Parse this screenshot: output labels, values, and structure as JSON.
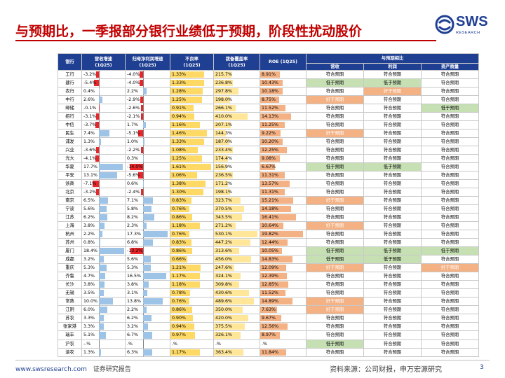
{
  "title": "与预期比，一季报部分银行业绩低于预期，阶段性扰动股价",
  "logo": {
    "name": "SWS",
    "subtitle": "RESEARCH",
    "color": "#1f3f93"
  },
  "headers": {
    "bank": "银行",
    "rev": "营收增速",
    "rev_sub": "(1Q25)",
    "np": "归母净利润增速",
    "np_sub": "(1Q25)",
    "npl": "不良率",
    "npl_sub": "(1Q25)",
    "cov": "拨备覆盖率",
    "cov_sub": "(1Q25)",
    "roe": "ROE (1Q25)",
    "exp": "与预期相比",
    "exp_rev": "营收",
    "exp_np": "利润",
    "exp_aq": "资产质量"
  },
  "colors": {
    "header": "#1f3f93",
    "title": "#c00000",
    "neg_bar": "#e8262a",
    "pos_bar": "#9dc3e6",
    "npl_bar": "#ffd966",
    "roe_bar": "#f4b183",
    "low": "#c6e0b4",
    "high": "#f4b183"
  },
  "rows": [
    {
      "bank": "工行",
      "rev": "-3.2%",
      "np": "-4.0%",
      "npl": "1.33%",
      "cov": "215.7%",
      "roe": "8.91%",
      "e1": "符合预期",
      "e2": "符合预期",
      "e3": "符合预期",
      "rv": -3.2,
      "nv": -4.0,
      "lv": 1.33,
      "cv": 215.7,
      "ov": 8.91
    },
    {
      "bank": "建行",
      "rev": "-5.4%",
      "np": "-4.0%",
      "npl": "1.33%",
      "cov": "236.8%",
      "roe": "10.43%",
      "e1": "低于预期",
      "e2": "低于预期",
      "e3": "符合预期",
      "rv": -5.4,
      "nv": -4.0,
      "lv": 1.33,
      "cv": 236.8,
      "ov": 10.43
    },
    {
      "bank": "农行",
      "rev": "0.4%",
      "np": "2.2%",
      "npl": "1.28%",
      "cov": "297.8%",
      "roe": "10.18%",
      "e1": "符合预期",
      "e2": "好于预期",
      "e3": "符合预期",
      "rv": 0.4,
      "nv": 2.2,
      "lv": 1.28,
      "cv": 297.8,
      "ov": 10.18
    },
    {
      "bank": "中行",
      "rev": "2.6%",
      "np": "-2.9%",
      "npl": "1.25%",
      "cov": "198.0%",
      "roe": "8.75%",
      "e1": "好于预期",
      "e2": "符合预期",
      "e3": "符合预期",
      "rv": 2.6,
      "nv": -2.9,
      "lv": 1.25,
      "cv": 198.0,
      "ov": 8.75
    },
    {
      "bank": "邮储",
      "rev": "-0.1%",
      "np": "-2.6%",
      "npl": "0.91%",
      "cov": "266.1%",
      "roe": "11.52%",
      "e1": "符合预期",
      "e2": "符合预期",
      "e3": "低于预期",
      "rv": -0.1,
      "nv": -2.6,
      "lv": 0.91,
      "cv": 266.1,
      "ov": 11.52
    },
    {
      "bank": "招行",
      "rev": "-3.1%",
      "np": "-2.1%",
      "npl": "0.94%",
      "cov": "410.0%",
      "roe": "14.13%",
      "e1": "符合预期",
      "e2": "符合预期",
      "e3": "符合预期",
      "rv": -3.1,
      "nv": -2.1,
      "lv": 0.94,
      "cv": 410.0,
      "ov": 14.13
    },
    {
      "bank": "中信",
      "rev": "-3.7%",
      "np": "1.7%",
      "npl": "1.16%",
      "cov": "207.1%",
      "roe": "11.25%",
      "e1": "符合预期",
      "e2": "符合预期",
      "e3": "符合预期",
      "rv": -3.7,
      "nv": 1.7,
      "lv": 1.16,
      "cv": 207.1,
      "ov": 11.25
    },
    {
      "bank": "民生",
      "rev": "7.4%",
      "np": "-5.1%",
      "npl": "1.46%",
      "cov": "144.3%",
      "roe": "9.22%",
      "e1": "好于预期",
      "e2": "符合预期",
      "e3": "符合预期",
      "rv": 7.4,
      "nv": -5.1,
      "lv": 1.46,
      "cv": 144.3,
      "ov": 9.22
    },
    {
      "bank": "浦发",
      "rev": "1.3%",
      "np": "1.0%",
      "npl": "1.33%",
      "cov": "187.0%",
      "roe": "10.20%",
      "e1": "符合预期",
      "e2": "符合预期",
      "e3": "符合预期",
      "rv": 1.3,
      "nv": 1.0,
      "lv": 1.33,
      "cv": 187.0,
      "ov": 10.2
    },
    {
      "bank": "兴业",
      "rev": "-3.6%",
      "np": "-2.2%",
      "npl": "1.08%",
      "cov": "233.4%",
      "roe": "12.25%",
      "e1": "符合预期",
      "e2": "符合预期",
      "e3": "符合预期",
      "rv": -3.6,
      "nv": -2.2,
      "lv": 1.08,
      "cv": 233.4,
      "ov": 12.25
    },
    {
      "bank": "光大",
      "rev": "-4.1%",
      "np": "0.3%",
      "npl": "1.25%",
      "cov": "174.4%",
      "roe": "9.08%",
      "e1": "符合预期",
      "e2": "符合预期",
      "e3": "符合预期",
      "rv": -4.1,
      "nv": 0.3,
      "lv": 1.25,
      "cv": 174.4,
      "ov": 9.08
    },
    {
      "bank": "华夏",
      "rev": "17.7%",
      "np": "-14.0%",
      "npl": "1.61%",
      "cov": "156.9%",
      "roe": "6.67%",
      "e1": "低于预期",
      "e2": "低于预期",
      "e3": "符合预期",
      "rv": 17.7,
      "nv": -14.0,
      "lv": 1.61,
      "cv": 156.9,
      "ov": 6.67
    },
    {
      "bank": "平安",
      "rev": "13.1%",
      "np": "-5.6%",
      "npl": "1.06%",
      "cov": "236.5%",
      "roe": "11.31%",
      "e1": "符合预期",
      "e2": "符合预期",
      "e3": "符合预期",
      "rv": 13.1,
      "nv": -5.6,
      "lv": 1.06,
      "cv": 236.5,
      "ov": 11.31
    },
    {
      "bank": "浙商",
      "rev": "-7.1%",
      "np": "0.6%",
      "npl": "1.38%",
      "cov": "171.2%",
      "roe": "13.57%",
      "e1": "符合预期",
      "e2": "符合预期",
      "e3": "符合预期",
      "rv": -7.1,
      "nv": 0.6,
      "lv": 1.38,
      "cv": 171.2,
      "ov": 13.57
    },
    {
      "bank": "北京",
      "rev": "-3.2%",
      "np": "-2.4%",
      "npl": "1.30%",
      "cov": "198.1%",
      "roe": "11.31%",
      "e1": "符合预期",
      "e2": "符合预期",
      "e3": "符合预期",
      "rv": -3.2,
      "nv": -2.4,
      "lv": 1.3,
      "cv": 198.1,
      "ov": 11.31
    },
    {
      "bank": "南京",
      "rev": "6.5%",
      "np": "7.1%",
      "npl": "0.83%",
      "cov": "323.7%",
      "roe": "15.21%",
      "e1": "好于预期",
      "e2": "符合预期",
      "e3": "符合预期",
      "rv": 6.5,
      "nv": 7.1,
      "lv": 0.83,
      "cv": 323.7,
      "ov": 15.21
    },
    {
      "bank": "宁波",
      "rev": "5.6%",
      "np": "5.8%",
      "npl": "0.76%",
      "cov": "370.5%",
      "roe": "14.18%",
      "e1": "符合预期",
      "e2": "符合预期",
      "e3": "符合预期",
      "rv": 5.6,
      "nv": 5.8,
      "lv": 0.76,
      "cv": 370.5,
      "ov": 14.18
    },
    {
      "bank": "江苏",
      "rev": "6.2%",
      "np": "8.2%",
      "npl": "0.86%",
      "cov": "343.5%",
      "roe": "16.41%",
      "e1": "符合预期",
      "e2": "符合预期",
      "e3": "符合预期",
      "rv": 6.2,
      "nv": 8.2,
      "lv": 0.86,
      "cv": 343.5,
      "ov": 16.41
    },
    {
      "bank": "上海",
      "rev": "3.8%",
      "np": "2.3%",
      "npl": "1.18%",
      "cov": "271.2%",
      "roe": "10.64%",
      "e1": "好于预期",
      "e2": "符合预期",
      "e3": "符合预期",
      "rv": 3.8,
      "nv": 2.3,
      "lv": 1.18,
      "cv": 271.2,
      "ov": 10.64
    },
    {
      "bank": "杭州",
      "rev": "2.2%",
      "np": "17.3%",
      "npl": "0.76%",
      "cov": "530.1%",
      "roe": "19.82%",
      "e1": "符合预期",
      "e2": "符合预期",
      "e3": "符合预期",
      "rv": 2.2,
      "nv": 17.3,
      "lv": 0.76,
      "cv": 530.1,
      "ov": 19.82
    },
    {
      "bank": "苏州",
      "rev": "0.8%",
      "np": "6.8%",
      "npl": "0.83%",
      "cov": "447.2%",
      "roe": "12.44%",
      "e1": "符合预期",
      "e2": "符合预期",
      "e3": "符合预期",
      "rv": 0.8,
      "nv": 6.8,
      "lv": 0.83,
      "cv": 447.2,
      "ov": 12.44
    },
    {
      "bank": "厦门",
      "rev": "18.4%",
      "np": "-13.2%",
      "npl": "0.86%",
      "cov": "313.6%",
      "roe": "10.05%",
      "e1": "低于预期",
      "e2": "低于预期",
      "e3": "低于预期",
      "rv": 18.4,
      "nv": -13.2,
      "lv": 0.86,
      "cv": 313.6,
      "ov": 10.05
    },
    {
      "bank": "成都",
      "rev": "3.2%",
      "np": "5.6%",
      "npl": "0.66%",
      "cov": "456.0%",
      "roe": "14.83%",
      "e1": "低于预期",
      "e2": "低于预期",
      "e3": "符合预期",
      "rv": 3.2,
      "nv": 5.6,
      "lv": 0.66,
      "cv": 456.0,
      "ov": 14.83
    },
    {
      "bank": "重庆",
      "rev": "5.3%",
      "np": "5.3%",
      "npl": "1.21%",
      "cov": "247.6%",
      "roe": "12.09%",
      "e1": "好于预期",
      "e2": "符合预期",
      "e3": "好于预期",
      "rv": 5.3,
      "nv": 5.3,
      "lv": 1.21,
      "cv": 247.6,
      "ov": 12.09
    },
    {
      "bank": "齐鲁",
      "rev": "4.7%",
      "np": "16.5%",
      "npl": "1.17%",
      "cov": "324.1%",
      "roe": "12.39%",
      "e1": "符合预期",
      "e2": "符合预期",
      "e3": "符合预期",
      "rv": 4.7,
      "nv": 16.5,
      "lv": 1.17,
      "cv": 324.1,
      "ov": 12.39
    },
    {
      "bank": "长沙",
      "rev": "3.8%",
      "np": "3.8%",
      "npl": "1.18%",
      "cov": "309.8%",
      "roe": "12.85%",
      "e1": "符合预期",
      "e2": "符合预期",
      "e3": "符合预期",
      "rv": 3.8,
      "nv": 3.8,
      "lv": 1.18,
      "cv": 309.8,
      "ov": 12.85
    },
    {
      "bank": "无锡",
      "rev": "3.5%",
      "np": "3.1%",
      "npl": "0.78%",
      "cov": "430.6%",
      "roe": "11.52%",
      "e1": "符合预期",
      "e2": "符合预期",
      "e3": "符合预期",
      "rv": 3.5,
      "nv": 3.1,
      "lv": 0.78,
      "cv": 430.6,
      "ov": 11.52
    },
    {
      "bank": "常熟",
      "rev": "10.0%",
      "np": "13.8%",
      "npl": "0.76%",
      "cov": "489.6%",
      "roe": "14.89%",
      "e1": "好于预期",
      "e2": "符合预期",
      "e3": "符合预期",
      "rv": 10.0,
      "nv": 13.8,
      "lv": 0.76,
      "cv": 489.6,
      "ov": 14.89
    },
    {
      "bank": "江阴",
      "rev": "6.0%",
      "np": "2.2%",
      "npl": "0.86%",
      "cov": "350.0%",
      "roe": "7.63%",
      "e1": "好于预期",
      "e2": "符合预期",
      "e3": "符合预期",
      "rv": 6.0,
      "nv": 2.2,
      "lv": 0.86,
      "cv": 350.0,
      "ov": 7.63
    },
    {
      "bank": "苏农",
      "rev": "3.3%",
      "np": "6.2%",
      "npl": "0.90%",
      "cov": "420.0%",
      "roe": "9.67%",
      "e1": "符合预期",
      "e2": "符合预期",
      "e3": "符合预期",
      "rv": 3.3,
      "nv": 6.2,
      "lv": 0.9,
      "cv": 420.0,
      "ov": 9.67
    },
    {
      "bank": "张家港",
      "rev": "3.3%",
      "np": "3.2%",
      "npl": "0.94%",
      "cov": "375.5%",
      "roe": "12.56%",
      "e1": "符合预期",
      "e2": "符合预期",
      "e3": "符合预期",
      "rv": 3.3,
      "nv": 3.2,
      "lv": 0.94,
      "cv": 375.5,
      "ov": 12.56
    },
    {
      "bank": "瑞丰",
      "rev": "5.1%",
      "np": "6.7%",
      "npl": "0.97%",
      "cov": "326.1%",
      "roe": "8.97%",
      "e1": "符合预期",
      "e2": "符合预期",
      "e3": "符合预期",
      "rv": 5.1,
      "nv": 6.7,
      "lv": 0.97,
      "cv": 326.1,
      "ov": 8.97
    },
    {
      "bank": "沪农",
      "rev": "-.%",
      "np": ".%",
      "npl": ".%",
      "cov": ".%",
      "roe": ".%",
      "e1": "低于预期",
      "e2": "符合预期",
      "e3": "符合预期",
      "rv": 0,
      "nv": 0,
      "lv": 0,
      "cv": 0,
      "ov": 0
    },
    {
      "bank": "渝农",
      "rev": "1.3%",
      "np": "6.3%",
      "npl": "1.17%",
      "cov": "363.4%",
      "roe": "11.84%",
      "e1": "符合预期",
      "e2": "符合预期",
      "e3": "符合预期",
      "rv": 1.3,
      "nv": 6.3,
      "lv": 1.17,
      "cv": 363.4,
      "ov": 11.84
    }
  ],
  "footer": {
    "url": "www.swsresearch.com",
    "report": "证券研究报告",
    "source": "资料来源：公司财报，申万宏源研究",
    "page": "3"
  }
}
